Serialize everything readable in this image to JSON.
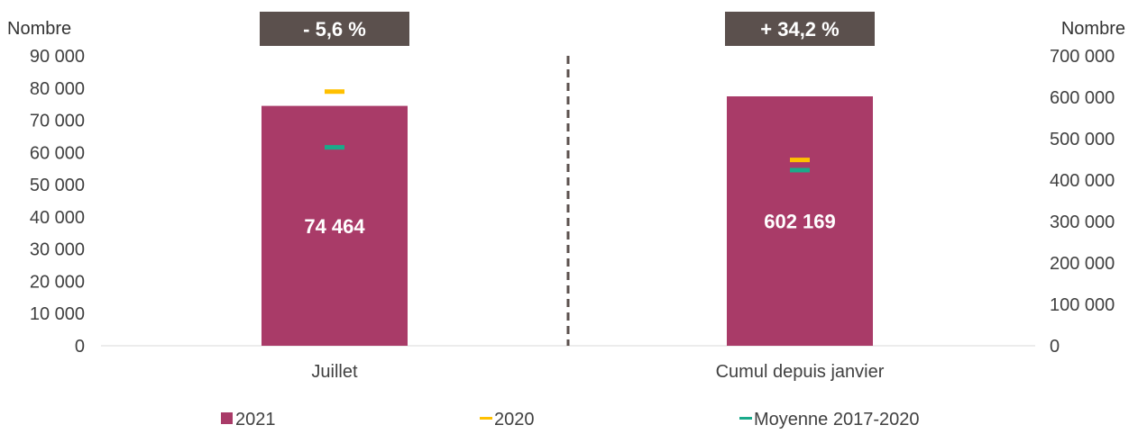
{
  "chart_data": {
    "type": "bar",
    "left_axis_title": "Nombre",
    "right_axis_title": "Nombre",
    "left_axis": {
      "ylim": [
        0,
        90000
      ],
      "ticks": [
        0,
        10000,
        20000,
        30000,
        40000,
        50000,
        60000,
        70000,
        80000,
        90000
      ],
      "tick_labels": [
        "0",
        "10 000",
        "20 000",
        "30 000",
        "40 000",
        "50 000",
        "60 000",
        "70 000",
        "80 000",
        "90 000"
      ]
    },
    "right_axis": {
      "ylim": [
        0,
        700000
      ],
      "ticks": [
        0,
        100000,
        200000,
        300000,
        400000,
        500000,
        600000,
        700000
      ],
      "tick_labels": [
        "0",
        "100 000",
        "200 000",
        "300 000",
        "400 000",
        "500 000",
        "600 000",
        "700 000"
      ]
    },
    "categories": [
      "Juillet",
      "Cumul depuis janvier"
    ],
    "category_axis": [
      "left",
      "right"
    ],
    "badges": [
      "- 5,6 %",
      "+ 34,2 %"
    ],
    "series": [
      {
        "name": "2021",
        "kind": "bar",
        "color": "#A93B68",
        "values": [
          74464,
          602169
        ],
        "labels": [
          "74 464",
          "602 169"
        ]
      },
      {
        "name": "2020",
        "kind": "marker",
        "color": "#FFC000",
        "values": [
          78900,
          448700
        ]
      },
      {
        "name": "Moyenne 2017-2020",
        "kind": "marker",
        "color": "#1AAA8A",
        "values": [
          61600,
          424000
        ]
      }
    ],
    "legend_position": "bottom",
    "colors": {
      "badge": "#5B504D",
      "divider": "#5B504D",
      "axis_text": "#404040"
    }
  }
}
